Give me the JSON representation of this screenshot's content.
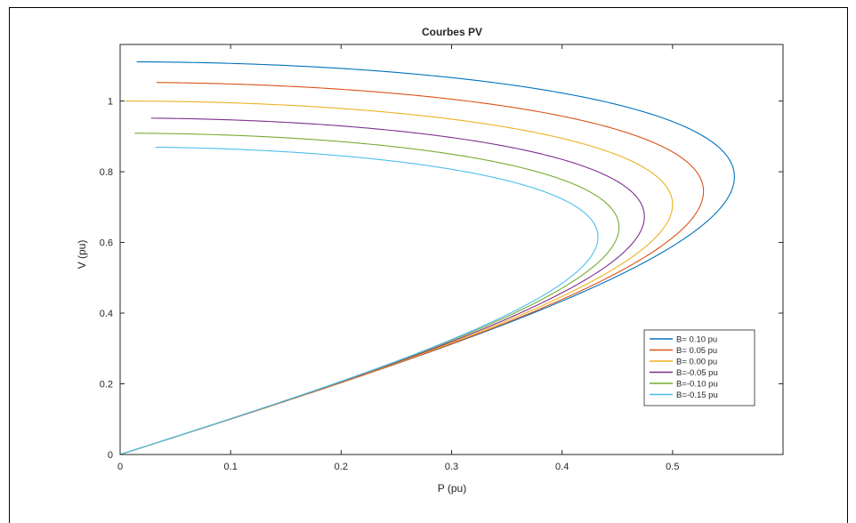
{
  "chart_data": {
    "type": "line",
    "title": "Courbes PV",
    "xlabel": "P (pu)",
    "ylabel": "V (pu)",
    "xlim": [
      0,
      0.6
    ],
    "ylim": [
      0,
      1.16
    ],
    "xticks": [
      "0",
      "0.1",
      "0.2",
      "0.3",
      "0.4",
      "0.5"
    ],
    "yticks": [
      "0",
      "0.2",
      "0.4",
      "0.6",
      "0.8",
      "1"
    ],
    "grid": false,
    "legend_position": "bottom-right",
    "series": [
      {
        "name": "B= 0.10 pu",
        "color": "#0072BD",
        "E": 1.111,
        "X": 1.11,
        "upper_start_x": 0.015
      },
      {
        "name": "B= 0.05 pu",
        "color": "#D95319",
        "E": 1.053,
        "X": 1.05,
        "upper_start_x": 0.033
      },
      {
        "name": "B= 0.00 pu",
        "color": "#EDB120",
        "E": 1.0,
        "X": 1.0,
        "upper_start_x": 0.005
      },
      {
        "name": "B=-0.05 pu",
        "color": "#7E2F8E",
        "E": 0.952,
        "X": 0.955,
        "upper_start_x": 0.028
      },
      {
        "name": "B=-0.10 pu",
        "color": "#77AC30",
        "E": 0.909,
        "X": 0.915,
        "upper_start_x": 0.013
      },
      {
        "name": "B=-0.15 pu",
        "color": "#4DBEEE",
        "E": 0.87,
        "X": 0.875,
        "upper_start_x": 0.032
      }
    ]
  }
}
